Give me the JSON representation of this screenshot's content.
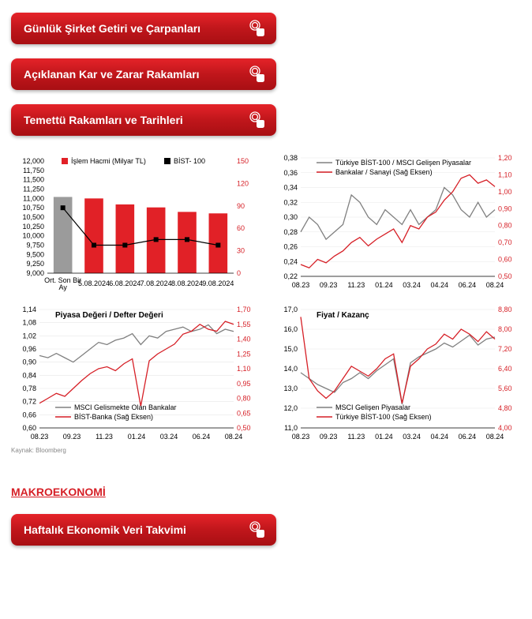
{
  "buttons": {
    "b1": "Günlük Şirket Getiri ve Çarpanları",
    "b2": "Açıklanan Kar ve Zarar Rakamları",
    "b3": "Temettü Rakamları ve Tarihleri",
    "b4": "Haftalık Ekonomik Veri Takvimi"
  },
  "section_makro": "MAKROEKONOMİ",
  "source": "Kaynak: Bloomberg",
  "colors": {
    "red": "#d61f26",
    "gray": "#808080",
    "bar_red": "#e12127",
    "bar_gray": "#9b9b9b"
  },
  "chart1": {
    "legend": [
      "İşlem Hacmi (Milyar TL)",
      "BİST- 100"
    ],
    "categories": [
      "Ort. Son Bir Ay",
      "5.08.2024",
      "6.08.2024",
      "7.08.2024",
      "8.08.2024",
      "9.08.2024"
    ],
    "bars": [
      102,
      100,
      92,
      88,
      82,
      80
    ],
    "bar_colors": [
      "#9b9b9b",
      "#e12127",
      "#e12127",
      "#e12127",
      "#e12127",
      "#e12127"
    ],
    "line": [
      10750,
      9750,
      9750,
      9900,
      9900,
      9750
    ],
    "ylim_left": [
      9000,
      12000
    ],
    "ytick_left_step": 250,
    "ylim_right": [
      0,
      150
    ],
    "ytick_right_step": 30
  },
  "chart2": {
    "legend": [
      "Türkiye BİST-100 / MSCI Gelişen Piyasalar",
      "Bankalar / Sanayi (Sağ Eksen)"
    ],
    "xticks": [
      "08.23",
      "09.23",
      "11.23",
      "01.24",
      "03.24",
      "04.24",
      "06.24",
      "08.24"
    ],
    "ylim_left": [
      0.22,
      0.38
    ],
    "ytick_left_step": 0.02,
    "ylim_right": [
      0.5,
      1.2
    ],
    "ytick_right_step": 0.1,
    "gray_line": [
      0.28,
      0.3,
      0.29,
      0.27,
      0.28,
      0.29,
      0.33,
      0.32,
      0.3,
      0.29,
      0.31,
      0.3,
      0.29,
      0.31,
      0.29,
      0.3,
      0.31,
      0.34,
      0.33,
      0.31,
      0.3,
      0.32,
      0.3,
      0.31
    ],
    "red_line": [
      0.57,
      0.55,
      0.6,
      0.58,
      0.62,
      0.65,
      0.7,
      0.73,
      0.68,
      0.72,
      0.75,
      0.78,
      0.7,
      0.8,
      0.78,
      0.85,
      0.88,
      0.95,
      1.0,
      1.08,
      1.1,
      1.05,
      1.07,
      1.03
    ]
  },
  "chart3": {
    "title": "Piyasa Değeri / Defter Değeri",
    "legend": [
      "MSCI Gelismekte Olan Bankalar",
      "BİST-Banka (Sağ Eksen)"
    ],
    "xticks": [
      "08.23",
      "09.23",
      "11.23",
      "01.24",
      "03.24",
      "06.24",
      "08.24"
    ],
    "ylim_left": [
      0.6,
      1.14
    ],
    "yticks_left": [
      0.6,
      0.66,
      0.72,
      0.78,
      0.84,
      0.9,
      0.96,
      1.02,
      1.08,
      1.14
    ],
    "ylim_right": [
      0.5,
      1.7
    ],
    "yticks_right": [
      0.5,
      0.65,
      0.8,
      0.95,
      1.1,
      1.25,
      1.4,
      1.55,
      1.7
    ],
    "gray_line": [
      0.93,
      0.92,
      0.94,
      0.92,
      0.9,
      0.93,
      0.96,
      0.99,
      0.98,
      1.0,
      1.01,
      1.03,
      0.98,
      1.02,
      1.01,
      1.04,
      1.05,
      1.06,
      1.04,
      1.05,
      1.07,
      1.03,
      1.05,
      1.04
    ],
    "red_line": [
      0.75,
      0.8,
      0.85,
      0.82,
      0.9,
      0.98,
      1.05,
      1.1,
      1.12,
      1.08,
      1.15,
      1.2,
      0.72,
      1.18,
      1.25,
      1.3,
      1.35,
      1.45,
      1.48,
      1.55,
      1.5,
      1.48,
      1.58,
      1.55
    ]
  },
  "chart4": {
    "title": "Fiyat / Kazanç",
    "legend": [
      "MSCI Gelişen Piyasalar",
      "Türkiye BİST-100 (Sağ Eksen)"
    ],
    "xticks": [
      "08.23",
      "09.23",
      "11.23",
      "01.24",
      "03.24",
      "04.24",
      "06.24",
      "08.24"
    ],
    "ylim_left": [
      11.0,
      17.0
    ],
    "ytick_left_step": 1.0,
    "ylim_right": [
      4.0,
      8.8
    ],
    "ytick_right_step": 0.8,
    "gray_line": [
      13.8,
      13.5,
      13.2,
      13.0,
      12.8,
      13.3,
      13.5,
      13.8,
      13.5,
      13.9,
      14.2,
      14.5,
      12.2,
      14.3,
      14.6,
      14.8,
      15.0,
      15.3,
      15.1,
      15.4,
      15.7,
      15.2,
      15.5,
      15.6
    ],
    "red_line": [
      8.5,
      6.0,
      5.5,
      5.2,
      5.5,
      6.0,
      6.5,
      6.3,
      6.1,
      6.4,
      6.8,
      7.0,
      5.0,
      6.5,
      6.8,
      7.2,
      7.4,
      7.8,
      7.6,
      8.0,
      7.8,
      7.5,
      7.9,
      7.6
    ]
  }
}
